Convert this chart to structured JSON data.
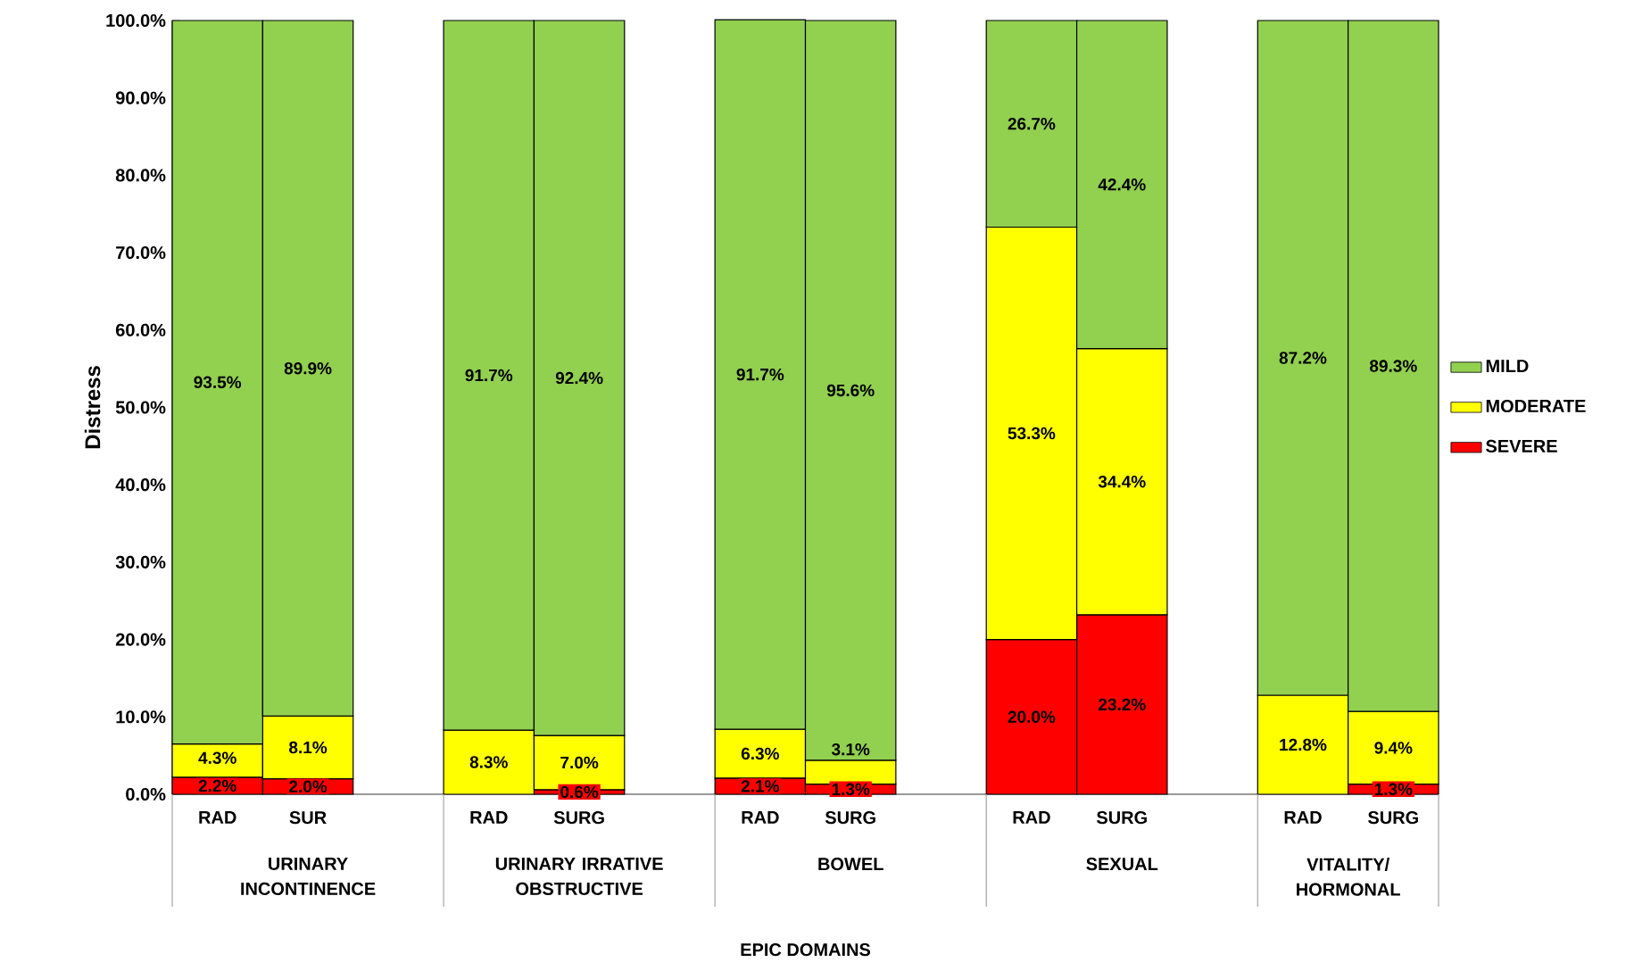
{
  "chart_data": {
    "type": "bar",
    "stacked": true,
    "ylabel": "Distress",
    "categories": [
      "RAD",
      "SUR",
      null,
      "RAD",
      "SURG",
      null,
      "RAD",
      "SURG",
      null,
      "RAD",
      "SURG",
      null,
      "RAD",
      "SURG"
    ],
    "annotations": [
      "URINARY INCONTINENCE",
      "URINARY IRRATIVE OBSTRUCTIVE",
      "BOWEL",
      "SEXUAL",
      "VITALITY/ HORMONAL",
      "EPIC DOMAINS"
    ],
    "series": [
      {
        "name": "SEVERE",
        "color": "#ff0000",
        "values": [
          2.2,
          2.0,
          null,
          null,
          0.6,
          null,
          2.1,
          1.3,
          null,
          20.0,
          23.2,
          null,
          null,
          1.3
        ],
        "value_labels": [
          "2.2%",
          "2.0%",
          null,
          null,
          "0.6%",
          null,
          "2.1%",
          "1.3%",
          null,
          "20.0%",
          "23.2%",
          null,
          null,
          "1.3%"
        ]
      },
      {
        "name": "MODERATE",
        "color": "#ffff00",
        "values": [
          4.3,
          8.1,
          null,
          8.3,
          7.0,
          null,
          6.3,
          3.1,
          null,
          53.3,
          34.4,
          null,
          12.8,
          9.4
        ],
        "value_labels": [
          "4.3%",
          "8.1%",
          null,
          "8.3%",
          "7.0%",
          null,
          "6.3%",
          "3.1%",
          null,
          "53.3%",
          "34.4%",
          null,
          "12.8%",
          "9.4%"
        ]
      },
      {
        "name": "MILD",
        "color": "#92d050",
        "values": [
          93.5,
          89.9,
          null,
          91.7,
          92.4,
          null,
          91.7,
          95.6,
          null,
          26.7,
          42.4,
          null,
          87.2,
          89.3
        ],
        "value_labels": [
          "93.5%",
          "89.9%",
          null,
          "91.7%",
          "92.4%",
          null,
          "91.7%",
          "95.6%",
          null,
          "26.7%",
          "42.4%",
          null,
          "87.2%",
          "89.3%"
        ]
      }
    ],
    "ylim": [
      0,
      100
    ],
    "yticks": [
      {
        "value": 0,
        "label": "0.0%"
      },
      {
        "value": 10,
        "label": "10.0%"
      },
      {
        "value": 20,
        "label": "20.0%"
      },
      {
        "value": 30,
        "label": "30.0%"
      },
      {
        "value": 40,
        "label": "40.0%"
      },
      {
        "value": 50,
        "label": "50.0%"
      },
      {
        "value": 60,
        "label": "60.0%"
      },
      {
        "value": 70,
        "label": "70.0%"
      },
      {
        "value": 80,
        "label": "80.0%"
      },
      {
        "value": 90,
        "label": "90.0%"
      },
      {
        "value": 100,
        "label": "100.0%"
      }
    ],
    "legend": "right",
    "grid": false
  }
}
